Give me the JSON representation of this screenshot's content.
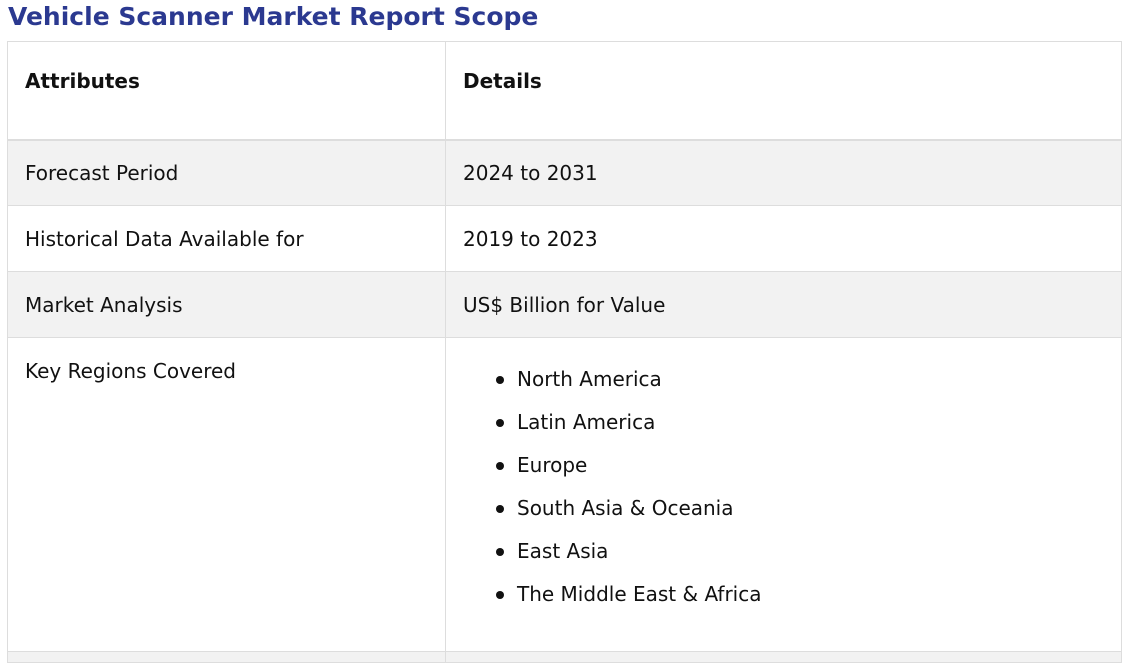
{
  "page": {
    "title": "Vehicle Scanner Market Report Scope",
    "title_color": "#2b3990"
  },
  "table": {
    "headers": {
      "attributes": "Attributes",
      "details": "Details"
    },
    "rows": [
      {
        "attribute": "Forecast Period",
        "detail": "2024 to 2031",
        "shaded": true
      },
      {
        "attribute": "Historical Data Available for",
        "detail": "2019 to 2023",
        "shaded": false
      },
      {
        "attribute": "Market Analysis",
        "detail": "US$ Billion for Value",
        "shaded": true
      }
    ],
    "regions": {
      "attribute": "Key Regions Covered",
      "items": [
        "North America",
        "Latin America",
        "Europe",
        "South Asia & Oceania",
        "East Asia",
        "The Middle East & Africa"
      ]
    },
    "shade_color": "#f2f2f2",
    "border_color": "#dddddd"
  }
}
